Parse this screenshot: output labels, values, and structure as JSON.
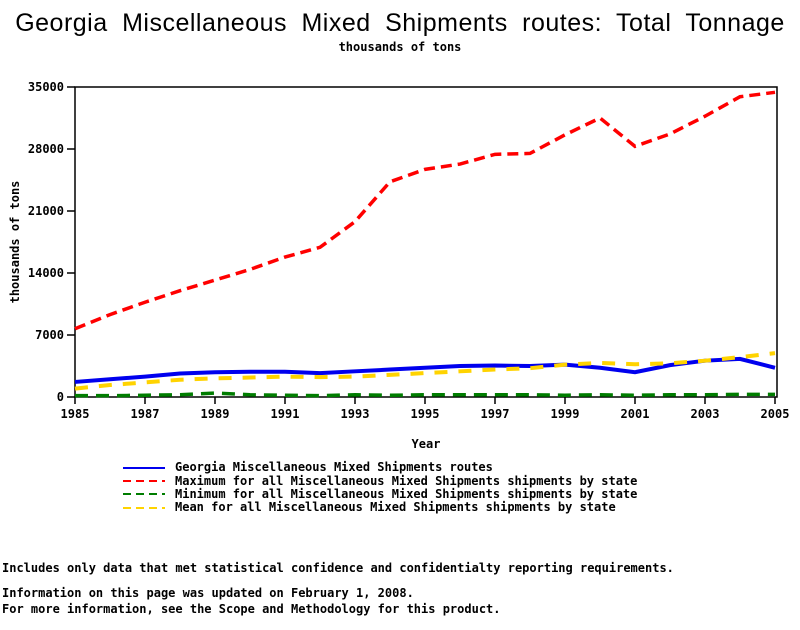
{
  "chart_data": {
    "type": "line",
    "title": "Georgia Miscellaneous Mixed Shipments routes: Total Tonnage",
    "subtitle": "thousands of tons",
    "xlabel": "Year",
    "ylabel": "thousands of tons",
    "xlim": [
      1985,
      2005
    ],
    "ylim": [
      0,
      35000
    ],
    "xticks": [
      1985,
      1987,
      1989,
      1991,
      1993,
      1995,
      1997,
      1999,
      2001,
      2003,
      2005
    ],
    "yticks": [
      0,
      7000,
      14000,
      21000,
      28000,
      35000
    ],
    "grid": false,
    "legend_position": "bottom-left",
    "x": [
      1985,
      1986,
      1987,
      1988,
      1989,
      1990,
      1991,
      1992,
      1993,
      1994,
      1995,
      1996,
      1997,
      1998,
      1999,
      2000,
      2001,
      2002,
      2003,
      2004,
      2005
    ],
    "series": [
      {
        "name": "Georgia Miscellaneous Mixed Shipments routes",
        "color": "#0000EE",
        "style": "solid",
        "values": [
          1700,
          2000,
          2300,
          2650,
          2800,
          2850,
          2850,
          2700,
          2900,
          3100,
          3300,
          3500,
          3550,
          3500,
          3650,
          3300,
          2800,
          3600,
          4100,
          4300,
          3300
        ]
      },
      {
        "name": "Maximum for all Miscellaneous Mixed Shipments shipments by state",
        "color": "#FF0000",
        "style": "dashed",
        "values": [
          7700,
          9300,
          10700,
          12000,
          13200,
          14400,
          15800,
          16900,
          19800,
          24300,
          25700,
          26300,
          27400,
          27500,
          29600,
          31500,
          28300,
          29700,
          31700,
          33900,
          34400
        ]
      },
      {
        "name": "Minimum for all Miscellaneous Mixed Shipments shipments by state",
        "color": "#007D00",
        "style": "dashed",
        "values": [
          150,
          150,
          200,
          250,
          450,
          250,
          200,
          150,
          250,
          200,
          250,
          250,
          250,
          250,
          200,
          250,
          200,
          250,
          250,
          300,
          300
        ]
      },
      {
        "name": "Mean for all Miscellaneous Mixed Shipments shipments by state",
        "color": "#FFD300",
        "style": "dashed",
        "values": [
          950,
          1350,
          1650,
          1950,
          2100,
          2200,
          2300,
          2250,
          2300,
          2500,
          2700,
          2900,
          3100,
          3250,
          3650,
          3850,
          3700,
          3800,
          4100,
          4500,
          4950
        ]
      }
    ]
  },
  "footer": {
    "line1": "Includes only data that met statistical confidence and confidentialty reporting requirements.",
    "line2": "For more information, see the Scope and Methodology for this product.",
    "updated": "Information on this page was updated on February 1, 2008."
  }
}
